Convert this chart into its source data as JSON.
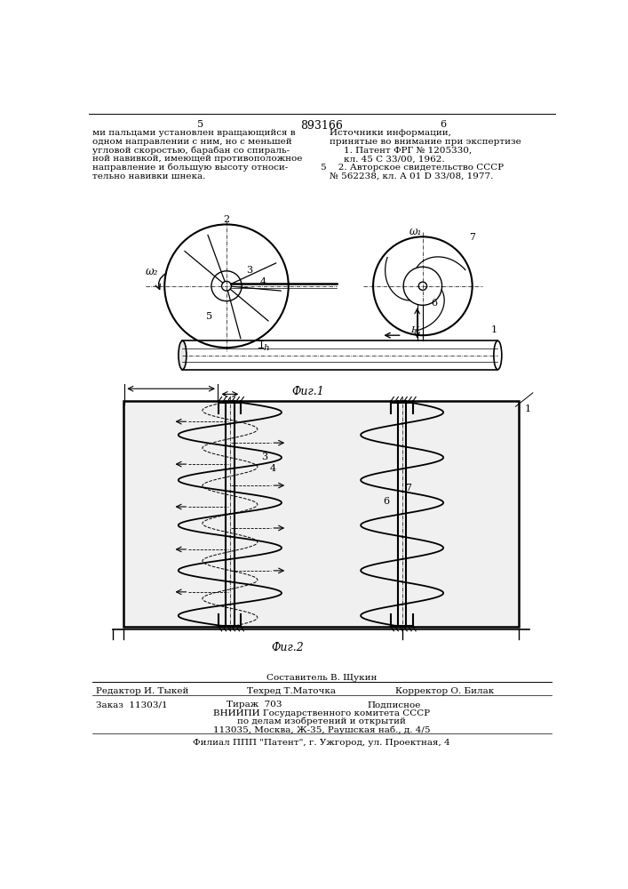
{
  "page_number_left": "5",
  "page_number_right": "6",
  "patent_number": "893166",
  "left_text_lines": [
    "ми пальцами установлен вращающийся в",
    "одном направлении с ним, но с меньшей",
    "угловой скоростью, барабан со спираль-",
    "ной навивкой, имеющей противоположное",
    "направление и большую высоту относи-",
    "тельно навивки шнека."
  ],
  "right_header": "Источники информации,",
  "right_line2": "принятые во внимание при экспертизе",
  "right_line3": "1. Патент ФРГ № 1205330,",
  "right_line4": "кл. 45 С 33/00, 1962.",
  "right_marker": "5",
  "right_line5": "   2. Авторское свидетельство СССР",
  "right_line6": "№ 562238, кл. А 01 D 33/08, 1977.",
  "fig1_caption": "Фиг.1",
  "fig2_caption": "Фиг.2",
  "label_omega1": "ω₂",
  "label_omega2": "ω₁",
  "label_2": "2",
  "label_3": "3",
  "label_4": "4",
  "label_5": "5",
  "label_6": "6",
  "label_7": "7",
  "label_1": "1",
  "label_h": "h",
  "label_H": "H",
  "footer_composer": "Составитель В. Щукин",
  "footer_editor": "Редактор И. Тыкей",
  "footer_tech": "Техред Т.Маточка",
  "footer_corrector": "Корректор О. Билак",
  "footer_order": "Заказ  11303/1",
  "footer_print": "Тираж  703",
  "footer_signed": "Подписное",
  "footer_org": "ВНИИПИ Государственного комитета СССР",
  "footer_org2": "по делам изобретений и открытий",
  "footer_address": "113035, Москва, Ж-35, Раушская наб., д. 4/5",
  "footer_branch": "Филиал ППП \"Патент\", г. Ужгород, ул. Проектная, 4",
  "bg_color": "#ffffff",
  "text_color": "#000000"
}
